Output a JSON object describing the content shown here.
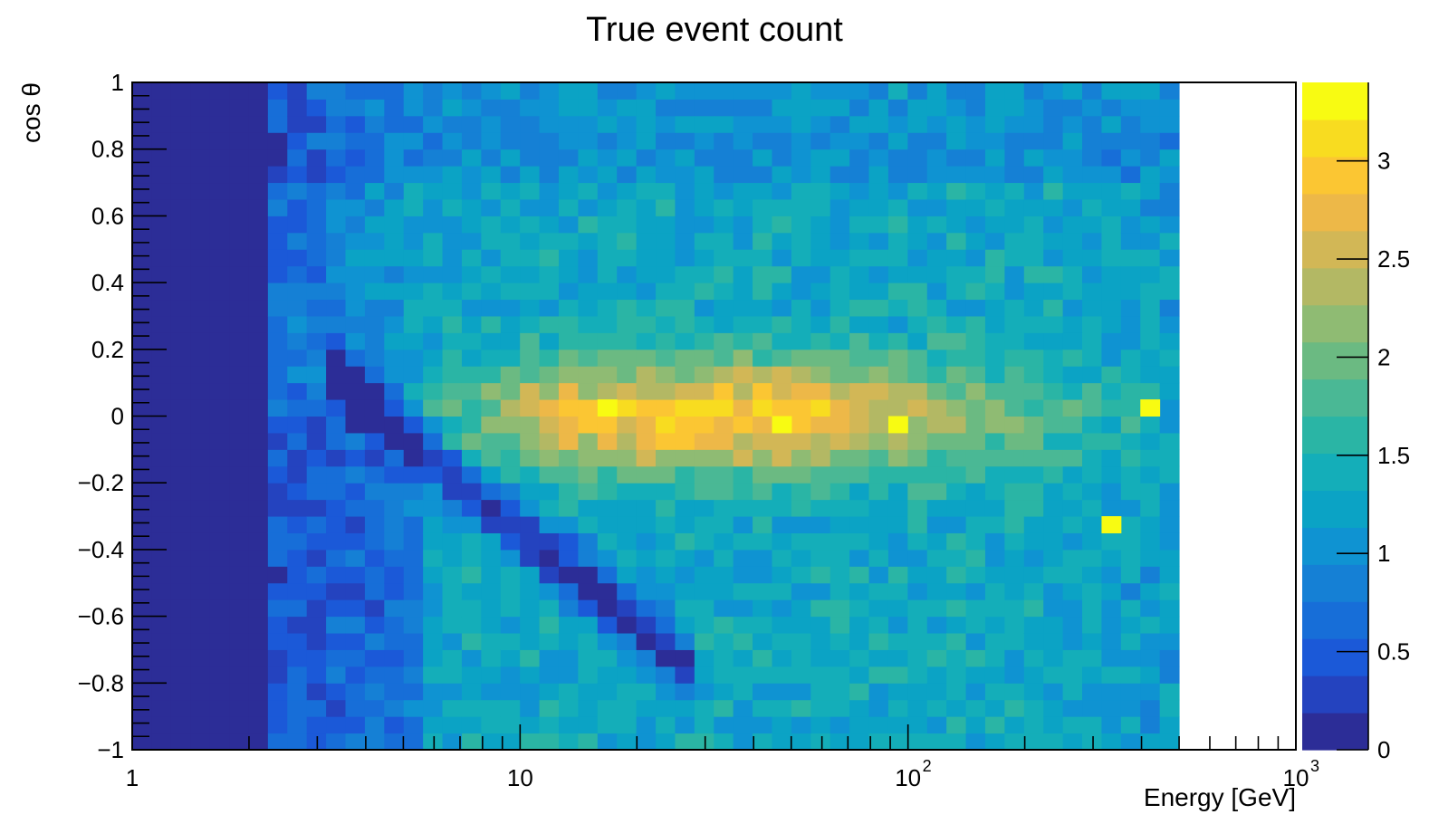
{
  "chart_data": {
    "type": "heatmap",
    "title": "True event count",
    "xlabel": "Energy [GeV]",
    "ylabel": "cos θ",
    "x_scale": "log",
    "xlim": [
      1,
      1000
    ],
    "ylim": [
      -1,
      1
    ],
    "x_tick_labels": [
      {
        "value": 1,
        "base": "1",
        "exp": ""
      },
      {
        "value": 10,
        "base": "10",
        "exp": ""
      },
      {
        "value": 100,
        "base": "10",
        "exp": "2"
      },
      {
        "value": 1000,
        "base": "10",
        "exp": "3"
      }
    ],
    "y_ticks": [
      -1,
      -0.8,
      -0.6,
      -0.4,
      -0.2,
      0,
      0.2,
      0.4,
      0.6,
      0.8,
      1
    ],
    "y_tick_labels": [
      "−1",
      "−0.8",
      "−0.6",
      "−0.4",
      "−0.2",
      "0",
      "0.2",
      "0.4",
      "0.6",
      "0.8",
      "1"
    ],
    "colorbar": {
      "range": [
        0,
        3.4
      ],
      "ticks": [
        0,
        0.5,
        1,
        1.5,
        2,
        2.5,
        3
      ],
      "tick_labels": [
        "0",
        "0.5",
        "1",
        "1.5",
        "2",
        "2.5",
        "3"
      ],
      "palette": [
        "#2c2d97",
        "#2443bf",
        "#1b59d8",
        "#176ed8",
        "#1580d5",
        "#0f93d2",
        "#0ba3c5",
        "#14aeb9",
        "#2ab5a5",
        "#4ab895",
        "#6bba82",
        "#8fbb73",
        "#b3b864",
        "#d2b756",
        "#edb848",
        "#fbc633",
        "#f8dc20",
        "#f8fb12"
      ]
    },
    "bins": {
      "x_edges_start": 1,
      "x_edges_stop": 500,
      "n_x": 54,
      "y_start": -1,
      "y_stop": 1,
      "n_y": 40
    },
    "value_model": {
      "band_peak": {
        "mean_cos": 0,
        "width_cos": 0.17,
        "max_count": 3.0,
        "peak_log10E": 1.5
      },
      "dip_line": "cos = -0.06 - 0.95 * (log10E - 0.7) for log10E in [0.5, 1.45]",
      "empty_low_energy_edge_log10E": 0.35,
      "hot_bins": [
        {
          "energy": 47,
          "cos": -0.025,
          "count": 3.4
        },
        {
          "energy": 94,
          "cos": -0.025,
          "count": 3.4
        },
        {
          "energy": 16.5,
          "cos": 0.025,
          "count": 3.4
        },
        {
          "energy": 330,
          "cos": -0.325,
          "count": 3.4
        },
        {
          "energy": 440,
          "cos": 0.025,
          "count": 3.3
        }
      ]
    }
  }
}
